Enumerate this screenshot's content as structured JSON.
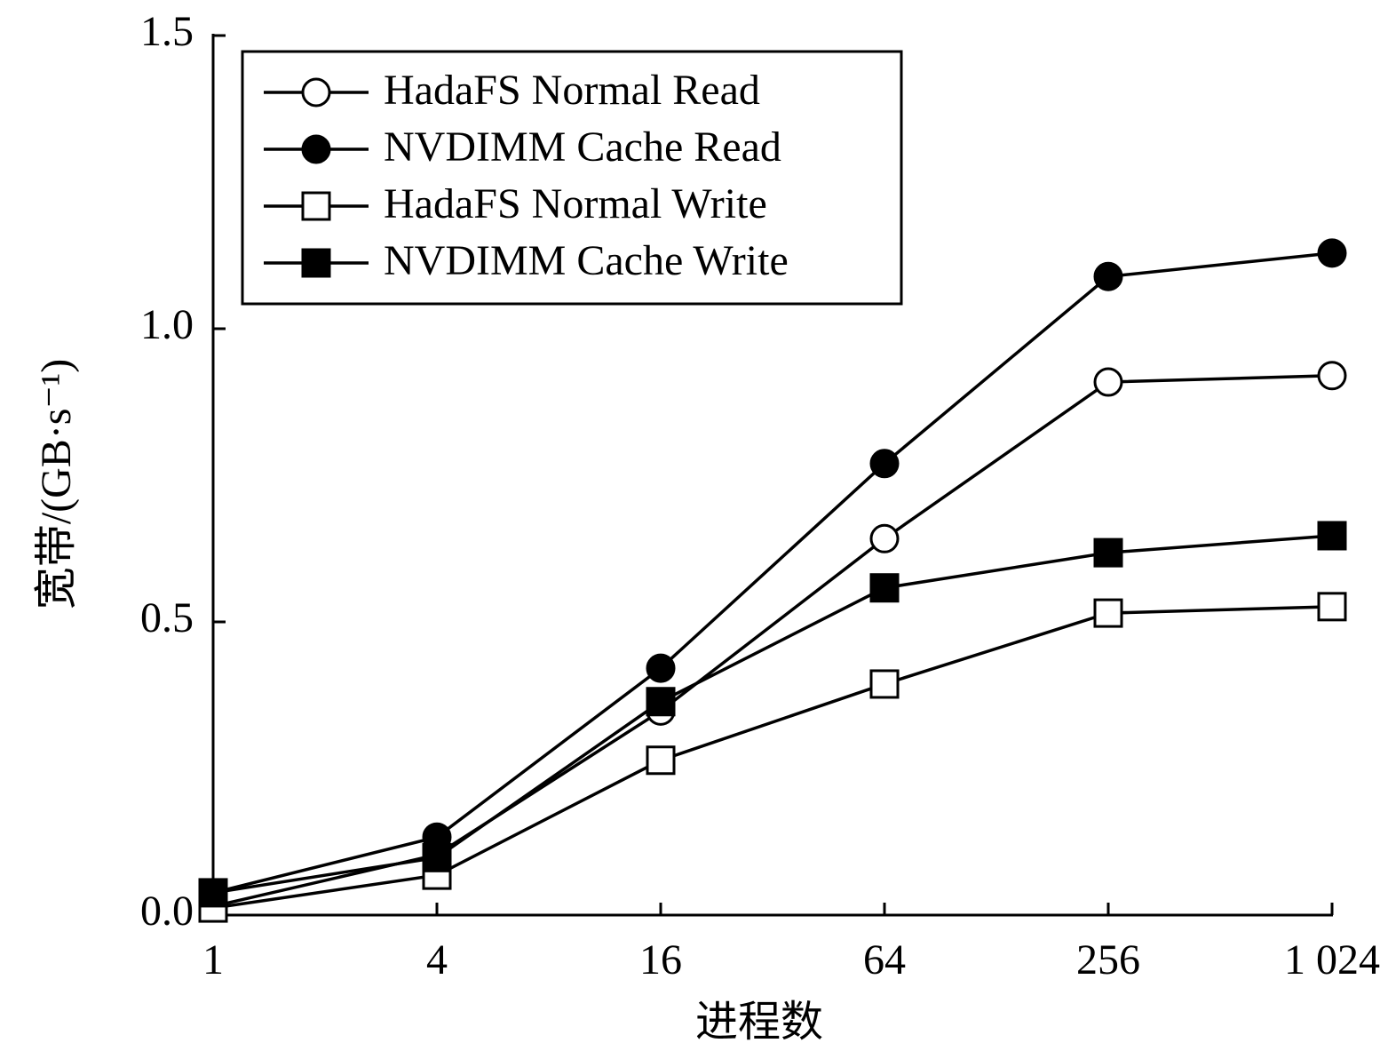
{
  "chart_data": {
    "type": "line",
    "x_label": "进程数",
    "y_label": "宽带/(GB·s⁻¹)",
    "categories": [
      "1",
      "4",
      "16",
      "64",
      "256",
      "1 024"
    ],
    "ylim": [
      0,
      1.5
    ],
    "yticks": [
      {
        "value": 0,
        "label": "0.0"
      },
      0.5,
      {
        "value": 1,
        "label": "1.0"
      },
      1.5
    ],
    "legend": "upper left",
    "series": [
      {
        "name": "HadaFS Normal Read",
        "color": "#000000",
        "marker": "circle",
        "filled": false,
        "values": [
          0.015,
          0.103,
          0.348,
          0.642,
          0.909,
          0.92
        ]
      },
      {
        "name": "NVDIMM Cache Read",
        "color": "#000000",
        "marker": "circle",
        "filled": true,
        "values": [
          0.038,
          0.133,
          0.421,
          0.77,
          1.089,
          1.129
        ]
      },
      {
        "name": "HadaFS Normal Write",
        "color": "#000000",
        "marker": "square",
        "filled": false,
        "values": [
          0.012,
          0.068,
          0.264,
          0.394,
          0.515,
          0.526
        ]
      },
      {
        "name": "NVDIMM Cache Write",
        "color": "#000000",
        "marker": "square",
        "filled": true,
        "values": [
          0.038,
          0.098,
          0.364,
          0.558,
          0.618,
          0.647
        ]
      }
    ]
  }
}
